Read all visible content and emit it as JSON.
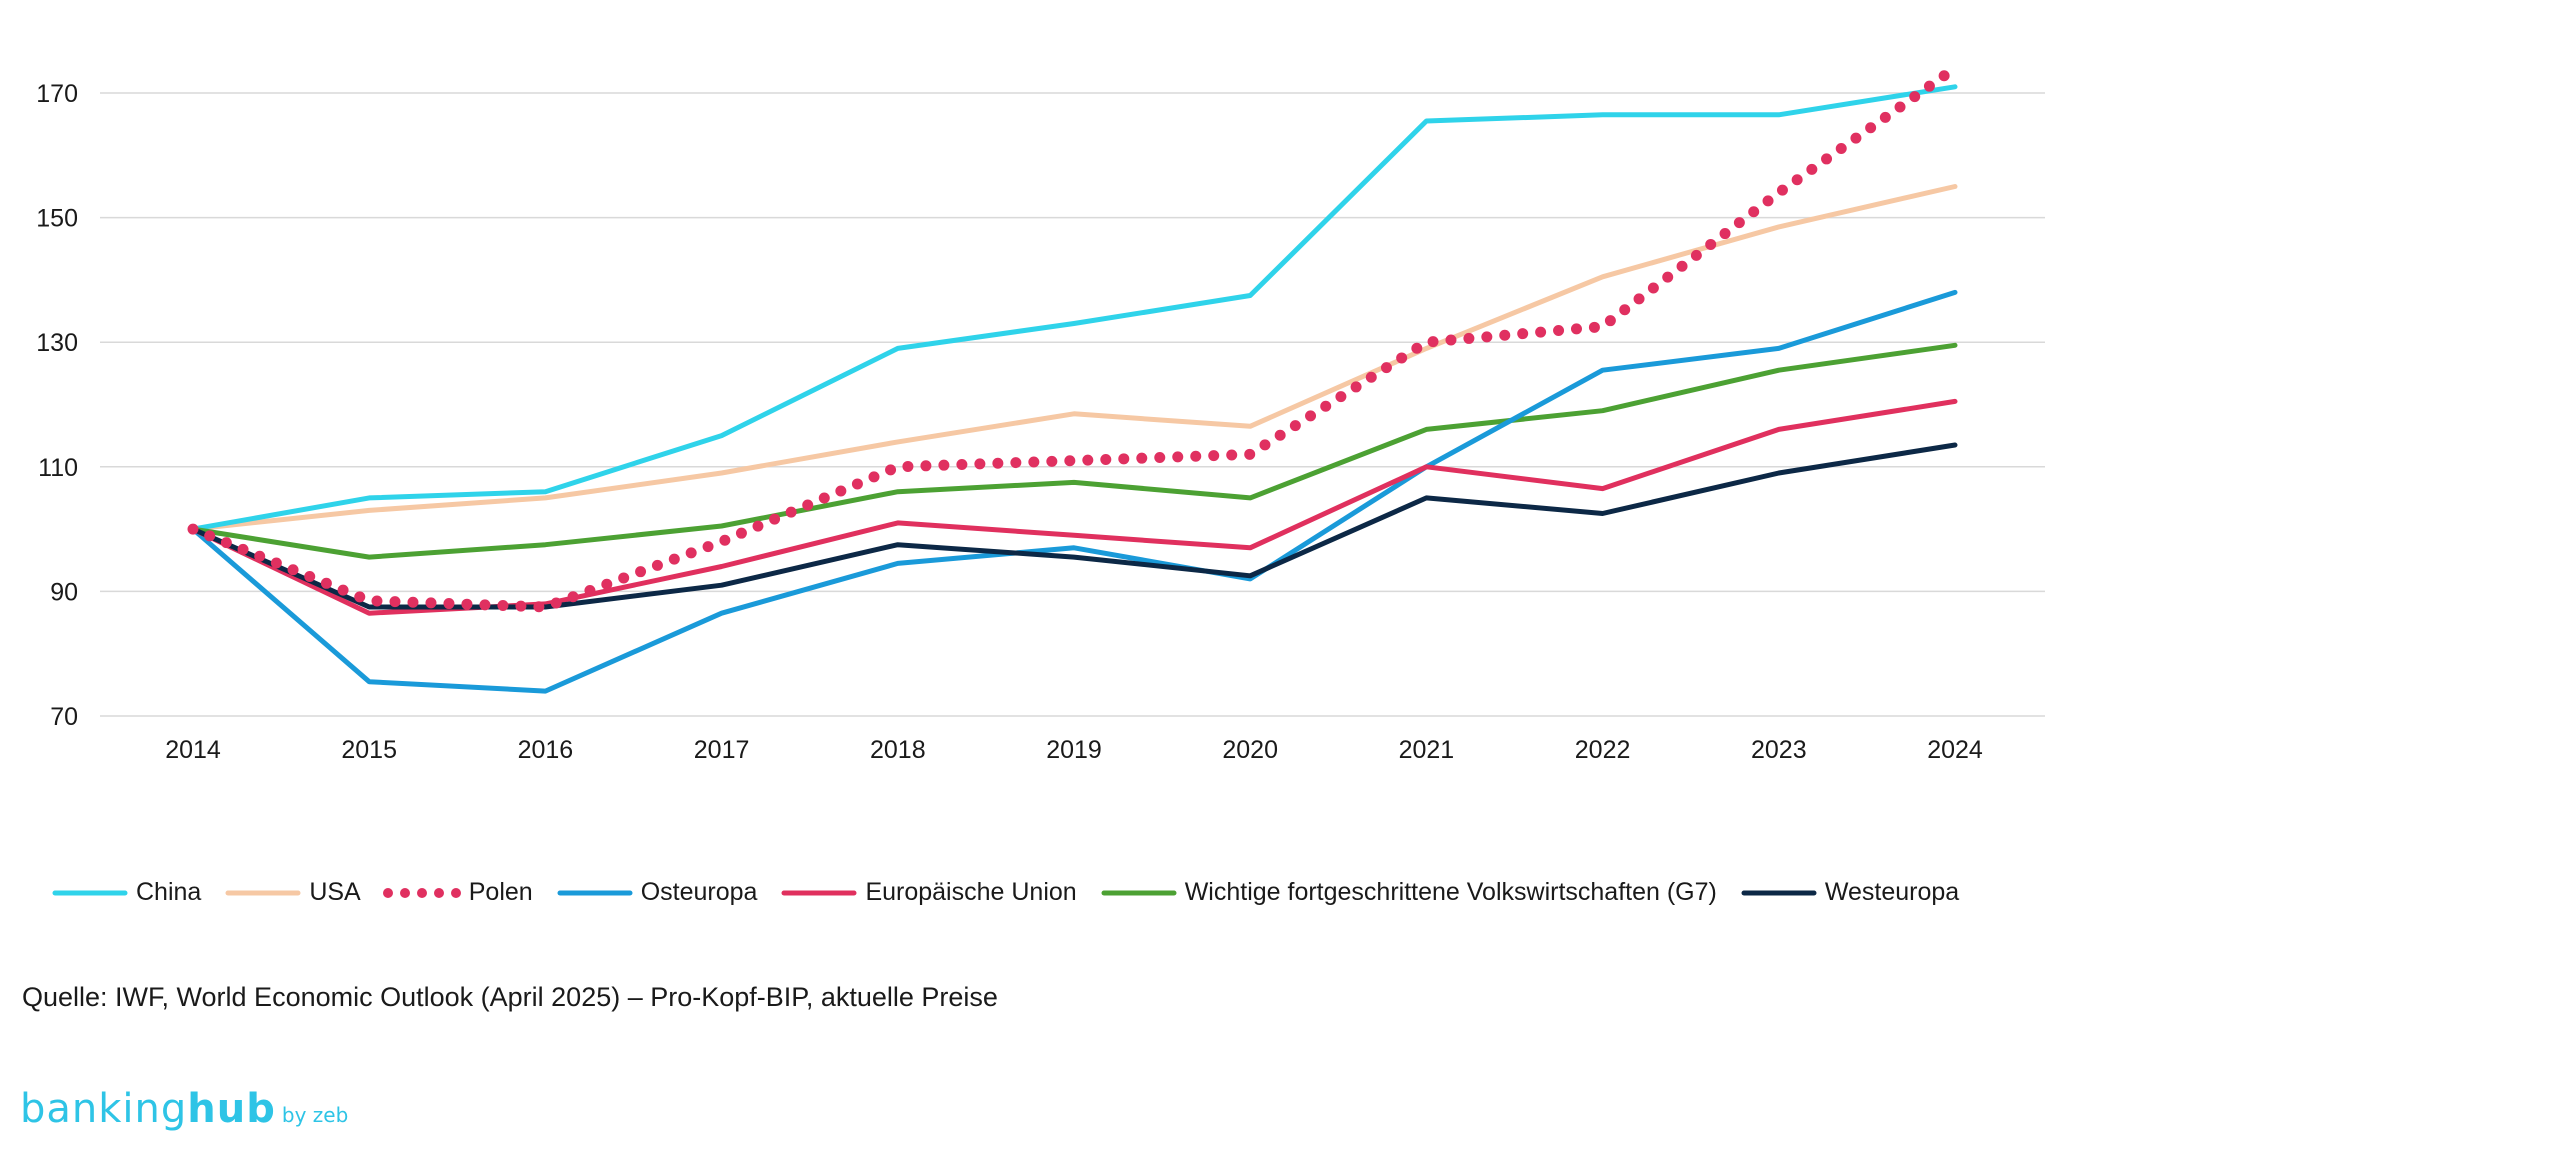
{
  "chart_data": {
    "type": "line",
    "x": [
      "2014",
      "2015",
      "2016",
      "2017",
      "2018",
      "2019",
      "2020",
      "2021",
      "2022",
      "2023",
      "2024"
    ],
    "ylim": [
      70,
      175
    ],
    "yticks": [
      70,
      90,
      110,
      130,
      150,
      170
    ],
    "grid": true,
    "legend_position": "bottom",
    "series": [
      {
        "name": "China",
        "color": "#2fd3ea",
        "dash": "solid",
        "values": [
          100,
          105,
          106,
          115,
          129,
          133,
          137.5,
          165.5,
          166.5,
          166.5,
          171
        ]
      },
      {
        "name": "USA",
        "color": "#f6c8a4",
        "dash": "solid",
        "values": [
          100,
          103,
          105,
          109,
          114,
          118.5,
          116.5,
          129,
          140.5,
          148.5,
          155
        ]
      },
      {
        "name": "Polen",
        "color": "#e03060",
        "dash": "dotted",
        "values": [
          100,
          88.5,
          87.5,
          98,
          110,
          111,
          112,
          130,
          132.5,
          154,
          174
        ]
      },
      {
        "name": "Osteuropa",
        "color": "#1a9ad9",
        "dash": "solid",
        "values": [
          100,
          75.5,
          74,
          86.5,
          94.5,
          97,
          92,
          110,
          125.5,
          129,
          138
        ]
      },
      {
        "name": "Europäische Union",
        "color": "#e0305e",
        "dash": "solid",
        "values": [
          100,
          86.5,
          88,
          94,
          101,
          99,
          97,
          110,
          106.5,
          116,
          120.5
        ]
      },
      {
        "name": "Wichtige fortgeschrittene Volkswirtschaften (G7)",
        "color": "#4ca133",
        "dash": "solid",
        "values": [
          100,
          95.5,
          97.5,
          100.5,
          106,
          107.5,
          105,
          116,
          119,
          125.5,
          129.5
        ]
      },
      {
        "name": "Westeuropa",
        "color": "#0c2846",
        "dash": "solid",
        "values": [
          100,
          87.5,
          87.5,
          91,
          97.5,
          95.5,
          92.5,
          105,
          102.5,
          109,
          113.5
        ]
      }
    ]
  },
  "source": "Quelle: IWF, World Economic Outlook (April 2025) – Pro-Kopf-BIP, aktuelle Preise",
  "brand": {
    "part1": "banking",
    "part2": "hub",
    "suffix": "by zeb"
  }
}
